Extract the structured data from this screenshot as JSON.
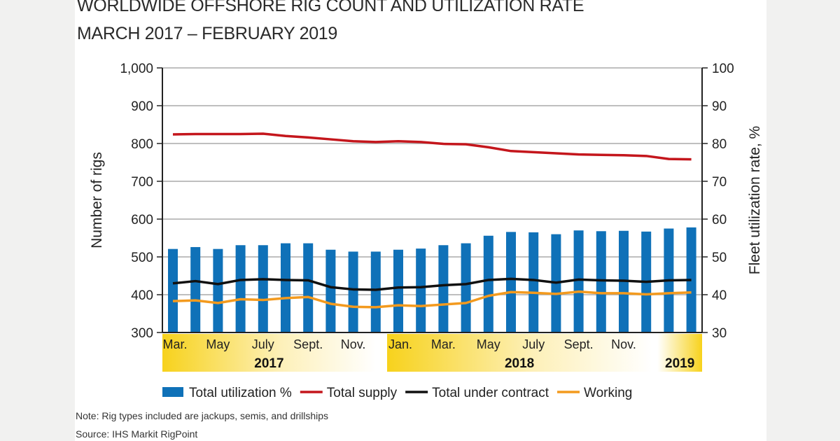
{
  "chart_data": {
    "type": "bar+line",
    "title": "WORLDWIDE OFFSHORE RIG COUNT AND UTILIZATION RATE",
    "subtitle": "MARCH 2017 – FEBRUARY 2019",
    "ylabel": "Number of rigs",
    "y2label": "Fleet utilization rate, %",
    "ylim": [
      300,
      1000
    ],
    "y2lim": [
      30,
      100
    ],
    "yticks": [
      "1,000",
      "900",
      "800",
      "700",
      "600",
      "500",
      "400",
      "300"
    ],
    "y2ticks": [
      "100",
      "90",
      "80",
      "70",
      "60",
      "50",
      "40",
      "30"
    ],
    "grid": true,
    "categories": [
      "Mar. 2017",
      "Apr. 2017",
      "May 2017",
      "June 2017",
      "July 2017",
      "Aug. 2017",
      "Sept. 2017",
      "Oct. 2017",
      "Nov. 2017",
      "Dec. 2017",
      "Jan. 2018",
      "Feb. 2018",
      "Mar. 2018",
      "Apr. 2018",
      "May 2018",
      "June 2018",
      "July 2018",
      "Aug. 2018",
      "Sept. 2018",
      "Oct. 2018",
      "Nov. 2018",
      "Dec. 2018",
      "Jan. 2019",
      "Feb. 2019"
    ],
    "xtick_labels": [
      {
        "index": 0,
        "label": "Mar."
      },
      {
        "index": 2,
        "label": "May"
      },
      {
        "index": 4,
        "label": "July"
      },
      {
        "index": 6,
        "label": "Sept."
      },
      {
        "index": 8,
        "label": "Nov."
      },
      {
        "index": 10,
        "label": "Jan."
      },
      {
        "index": 12,
        "label": "Mar."
      },
      {
        "index": 14,
        "label": "May"
      },
      {
        "index": 16,
        "label": "July"
      },
      {
        "index": 18,
        "label": "Sept."
      },
      {
        "index": 20,
        "label": "Nov."
      }
    ],
    "years": [
      {
        "label": "2017",
        "from": 0,
        "to": 9
      },
      {
        "label": "2018",
        "from": 10,
        "to": 21
      },
      {
        "label": "2019",
        "from": 22,
        "to": 23
      }
    ],
    "series": [
      {
        "name": "Total utilization %",
        "type": "bar",
        "axis": "right",
        "color": "#0f71b8",
        "values": [
          52.1,
          52.6,
          52.1,
          53.1,
          53.1,
          53.6,
          53.6,
          51.9,
          51.4,
          51.4,
          51.9,
          52.2,
          53.1,
          53.6,
          55.6,
          56.6,
          56.5,
          56.0,
          57.0,
          56.8,
          56.9,
          56.7,
          57.5,
          57.8
        ]
      },
      {
        "name": "Total supply",
        "type": "line",
        "axis": "left",
        "color": "#c4161c",
        "values": [
          824,
          825,
          825,
          825,
          826,
          820,
          816,
          811,
          806,
          804,
          806,
          804,
          799,
          798,
          790,
          780,
          777,
          774,
          771,
          770,
          769,
          767,
          759,
          758
        ]
      },
      {
        "name": "Total under contract",
        "type": "line",
        "axis": "left",
        "color": "#111111",
        "values": [
          430,
          436,
          428,
          439,
          441,
          439,
          438,
          420,
          414,
          413,
          419,
          420,
          425,
          428,
          439,
          442,
          439,
          432,
          440,
          438,
          437,
          434,
          438,
          439
        ]
      },
      {
        "name": "Working",
        "type": "line",
        "axis": "left",
        "color": "#f39a1e",
        "values": [
          383,
          385,
          378,
          388,
          386,
          391,
          394,
          376,
          368,
          367,
          372,
          370,
          374,
          378,
          397,
          407,
          405,
          402,
          408,
          404,
          404,
          401,
          404,
          406
        ]
      }
    ],
    "legend": "bottom"
  },
  "note": "Note: Rig types included are jackups, semis, and drillships",
  "source": "Source: IHS Markit RigPoint"
}
